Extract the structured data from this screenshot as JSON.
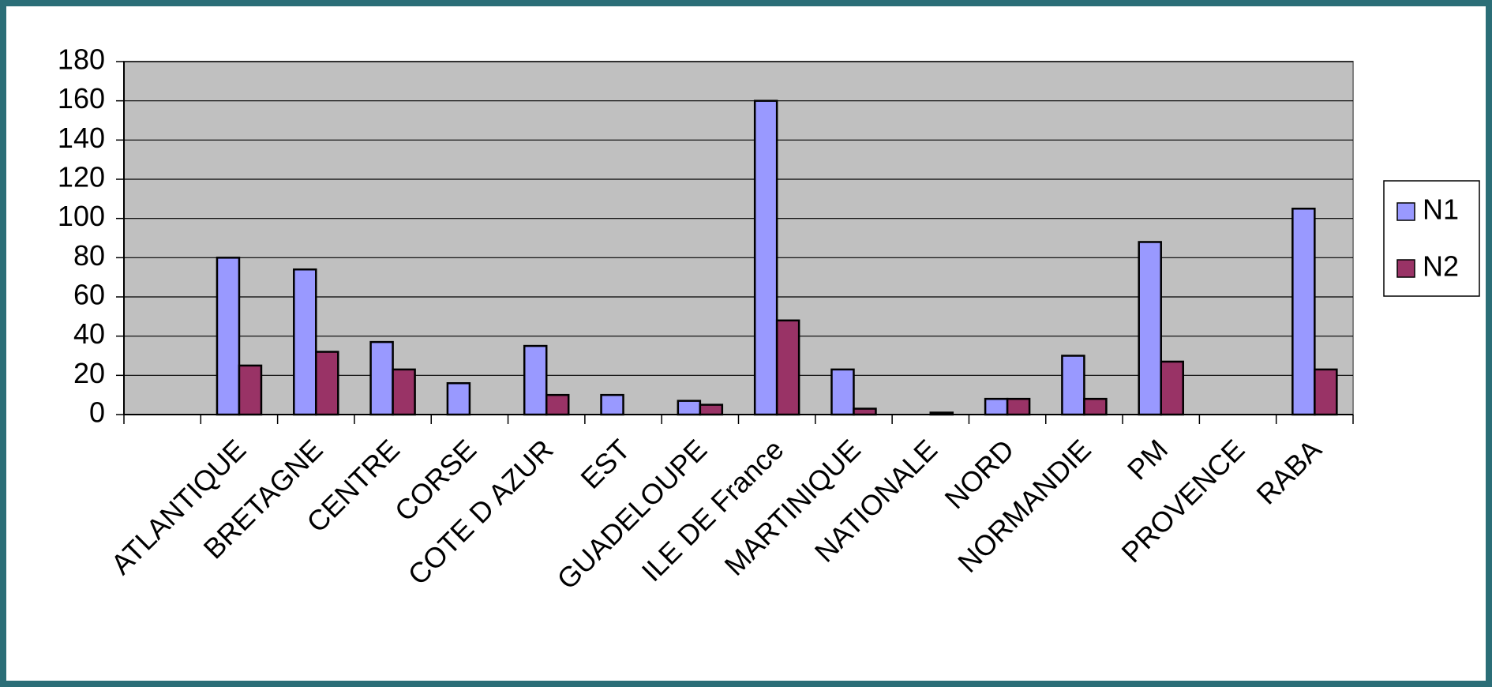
{
  "chart_data": {
    "type": "bar",
    "categories": [
      null,
      "ATLANTIQUE",
      "BRETAGNE",
      "CENTRE",
      "CORSE",
      "COTE D AZUR",
      "EST",
      "GUADELOUPE",
      "ILE DE France",
      "MARTINIQUE",
      "NATIONALE",
      "NORD",
      "NORMANDIE",
      "PM",
      "PROVENCE",
      "RABA"
    ],
    "series": [
      {
        "name": "N1",
        "color": "#9999ff",
        "values": [
          null,
          80,
          74,
          37,
          16,
          35,
          10,
          7,
          160,
          23,
          null,
          8,
          30,
          88,
          null,
          105
        ]
      },
      {
        "name": "N2",
        "color": "#993366",
        "values": [
          null,
          25,
          32,
          23,
          null,
          10,
          null,
          5,
          48,
          3,
          1,
          8,
          8,
          27,
          null,
          23
        ]
      }
    ],
    "ylim": [
      0,
      180
    ],
    "yticks": [
      0,
      20,
      40,
      60,
      80,
      100,
      120,
      140,
      160,
      180
    ],
    "grid": true,
    "legend": "right"
  }
}
